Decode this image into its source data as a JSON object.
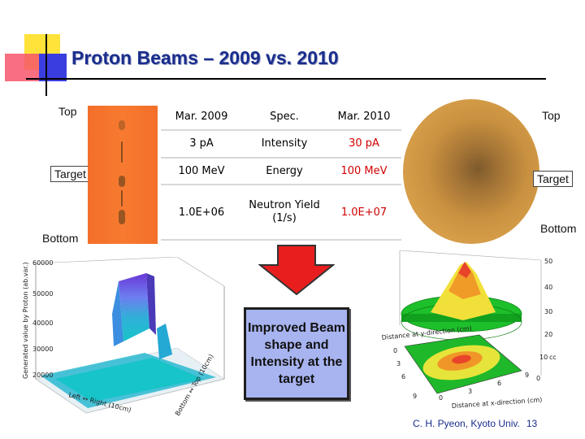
{
  "title": "Proton Beams – 2009 vs. 2010",
  "left_image": {
    "top_label": "Top",
    "target_label": "Target",
    "bottom_label": "Bottom"
  },
  "right_image": {
    "top_label": "Top",
    "target_label": "Target",
    "bottom_label": "Bottom"
  },
  "table": {
    "header": [
      "Mar. 2009",
      "Spec.",
      "Mar. 2010"
    ],
    "rows": [
      [
        "3 pA",
        "Intensity",
        "30 pA"
      ],
      [
        "100 MeV",
        "Energy",
        "100 MeV"
      ],
      [
        "1.0E+06",
        "Neutron Yield (1/s)",
        "1.0E+07"
      ]
    ]
  },
  "callout": "Improved Beam shape and Intensity at the target",
  "left_plot": {
    "y_ticks": [
      "60000",
      "50000",
      "40000",
      "30000",
      "20000"
    ],
    "y_axis_label": "Generated value by Proton (ab.var.)",
    "x_axis_label": "Left ↔ Right (10cm)",
    "z_axis_label": "Bottom ↔ Top (10cm)"
  },
  "right_plot": {
    "z_ticks": [
      "50",
      "40",
      "30",
      "20",
      "10",
      "0"
    ],
    "z_unit": "count",
    "x_axis_label": "Distance at x-direction (cm)",
    "y_ticks": [
      "0",
      "3",
      "6",
      "9"
    ],
    "x_ticks": [
      "0",
      "3",
      "6",
      "9"
    ],
    "y_axis_label": "Distance at y-direction (cm)"
  },
  "credit": {
    "author": "C. H. Pyeon, Kyoto Univ.",
    "page": "13"
  },
  "colors": {
    "title": "#1a2d8c",
    "arrow": "#e81e1e",
    "callout_bg": "#a8b4f0",
    "highlight_value": "#d00000"
  }
}
